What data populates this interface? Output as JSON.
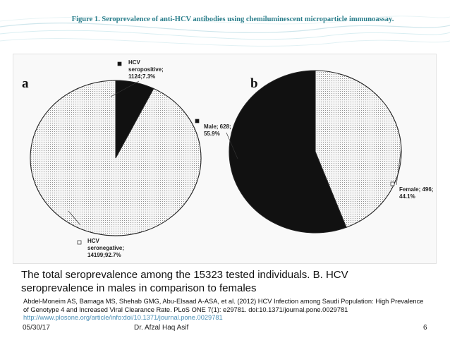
{
  "slide": {
    "title": "Figure 1. Seroprevalence of anti-HCV antibodies using chemiluminescent microparticle immunoassay.",
    "caption": "The total seroprevalence among the 15323 tested individuals. B. HCV seroprevalence in males in comparison to females",
    "citation": "Abdel-Moneim AS, Bamaga MS, Shehab GMG, Abu-Elsaad A-ASA, et al. (2012) HCV Infection among Saudi Population: High Prevalence of Genotype 4 and Increased Viral Clearance Rate. PLoS ONE 7(1): e29781. doi:10.1371/journal.pone.0029781",
    "citation_url": "http://www.plosone.org/article/info:doi/10.1371/journal.pone.0029781",
    "date": "05/30/17",
    "author": "Dr. Afzal Haq Asif",
    "page_number": "6"
  },
  "chart_data": [
    {
      "type": "pie",
      "panel": "a",
      "slices": [
        {
          "label_lines": [
            "HCV",
            "seropositive;",
            "1124;7.3%"
          ],
          "value": 1124,
          "percent": 7.3,
          "fill": "black",
          "color": "#111111"
        },
        {
          "label_lines": [
            "HCV",
            "seronegative;",
            "14199;92.7%"
          ],
          "value": 14199,
          "percent": 92.7,
          "fill": "dotted",
          "color": "#f4f4f4"
        }
      ]
    },
    {
      "type": "pie",
      "panel": "b",
      "slices": [
        {
          "label_lines": [
            "Male; 628;",
            "55.9%"
          ],
          "value": 628,
          "percent": 55.9,
          "fill": "black",
          "color": "#111111"
        },
        {
          "label_lines": [
            "Female; 496;",
            "44.1%"
          ],
          "value": 496,
          "percent": 44.1,
          "fill": "dotted",
          "color": "#f4f4f4"
        }
      ]
    }
  ]
}
